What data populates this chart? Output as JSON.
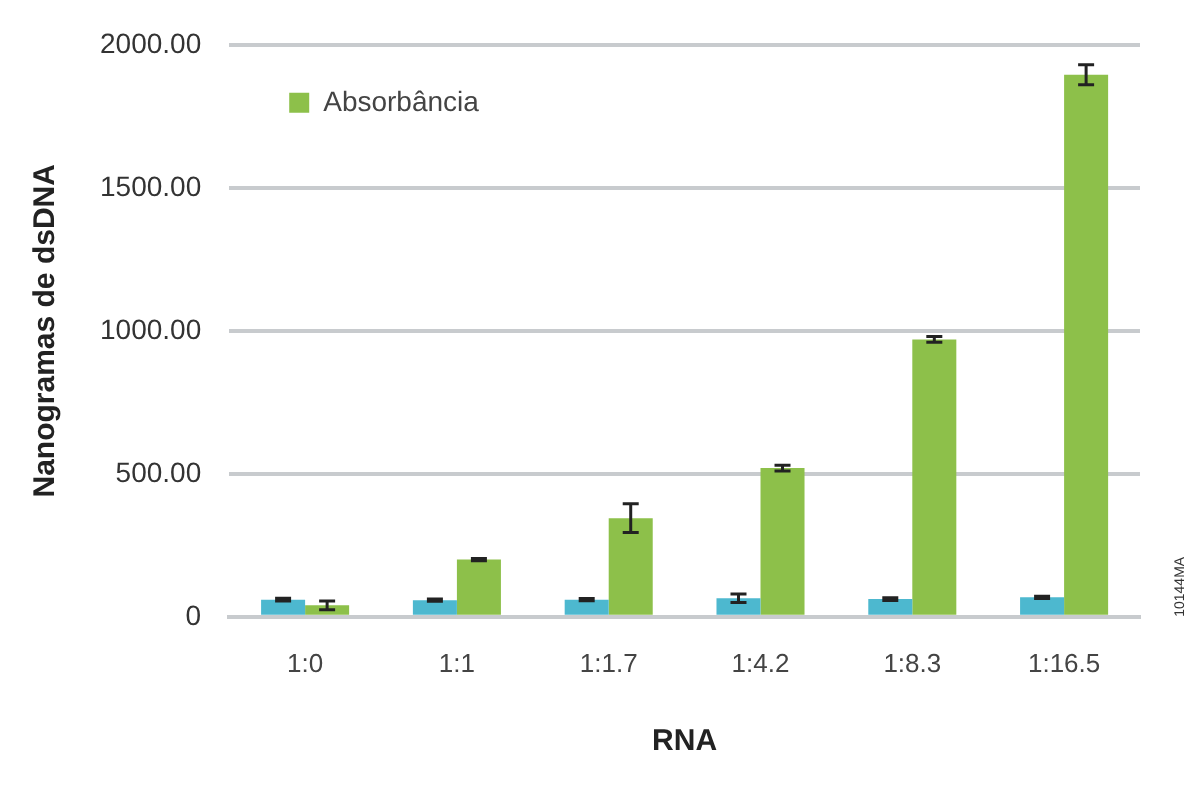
{
  "chart_data": {
    "type": "bar",
    "xlabel": "RNA",
    "ylabel": "Nanogramas de dsDNA",
    "categories": [
      "1:0",
      "1:1",
      "1:1.7",
      "1:4.2",
      "1:8.3",
      "1:16.5"
    ],
    "series": [
      {
        "color": "#4db8cf",
        "values": [
          60,
          58,
          60,
          65,
          62,
          68
        ],
        "errors": [
          5,
          4,
          4,
          15,
          5,
          4
        ]
      },
      {
        "name": "Absorbância",
        "color": "#8dc04a",
        "values": [
          40,
          200,
          345,
          520,
          970,
          1895
        ],
        "errors": [
          15,
          4,
          50,
          10,
          10,
          35
        ]
      }
    ],
    "ylim": [
      0,
      2000
    ],
    "yticks": [
      {
        "value": 0,
        "label": "0"
      },
      {
        "value": 500,
        "label": "500.00"
      },
      {
        "value": 1000,
        "label": "1000.00"
      },
      {
        "value": 1500,
        "label": "1500.00"
      },
      {
        "value": 2000,
        "label": "2000.00"
      }
    ],
    "grid": "y",
    "legend": "top left",
    "annotations": [
      "10144MA"
    ]
  }
}
